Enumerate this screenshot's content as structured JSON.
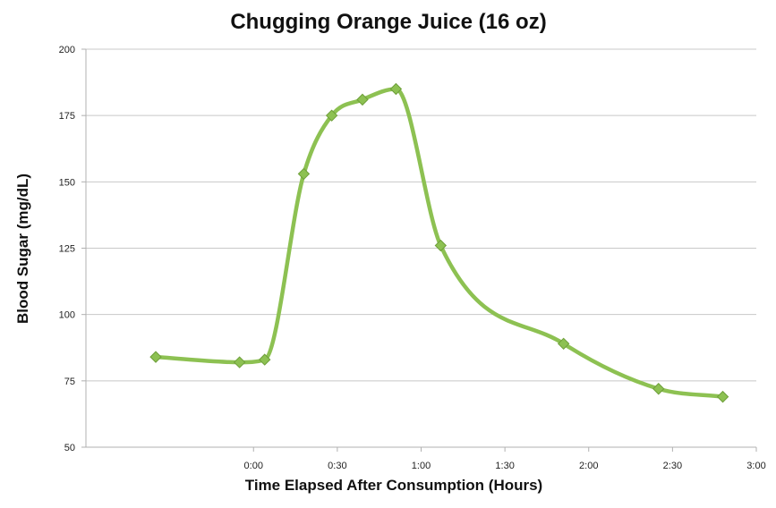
{
  "chart_data": {
    "type": "line",
    "title": "Chugging Orange Juice (16 oz)",
    "xlabel": "Time Elapsed After Consumption (Hours)",
    "ylabel": "Blood Sugar (mg/dL)",
    "x_unit": "minutes",
    "xlim": [
      -60,
      180
    ],
    "ylim": [
      50,
      200
    ],
    "yticks": [
      50,
      75,
      100,
      125,
      150,
      175,
      200
    ],
    "ytick_labels": [
      "50",
      "75",
      "100",
      "125",
      "150",
      "175",
      "200"
    ],
    "xticks": [
      0,
      30,
      60,
      90,
      120,
      150,
      180
    ],
    "xtick_labels": [
      "0:00",
      "0:30",
      "1:00",
      "1:30",
      "2:00",
      "2:30",
      "3:00"
    ],
    "grid": "horizontal",
    "line_color": "#8dc152",
    "series": [
      {
        "x": [
          -35,
          -5,
          4,
          18,
          28,
          39,
          51,
          67,
          111,
          145,
          168
        ],
        "y": [
          84,
          82,
          83,
          153,
          175,
          181,
          185,
          126,
          89,
          72,
          69
        ]
      }
    ]
  }
}
